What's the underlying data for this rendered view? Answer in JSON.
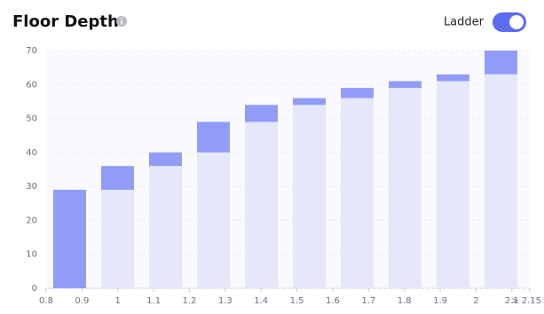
{
  "chart_data": {
    "type": "ladder",
    "title": "Floor Depth",
    "toggle_label": "Ladder",
    "values": [
      29,
      36,
      40,
      49,
      54,
      56,
      59,
      61,
      63,
      70
    ],
    "color": "#919cf8",
    "base_color": "#e5e7fb",
    "ylim": [
      0,
      70
    ],
    "yticks": [
      0,
      10,
      20,
      30,
      40,
      50,
      60,
      70
    ],
    "grid": true,
    "xlim": [
      0.8,
      2.15
    ],
    "xticks": [
      0.8,
      0.9,
      1,
      1.1,
      1.2,
      1.3,
      1.4,
      1.5,
      1.6,
      1.7,
      1.8,
      1.9,
      2,
      2.1,
      {
        "value": 2.15,
        "label": "> 2.15"
      }
    ]
  }
}
